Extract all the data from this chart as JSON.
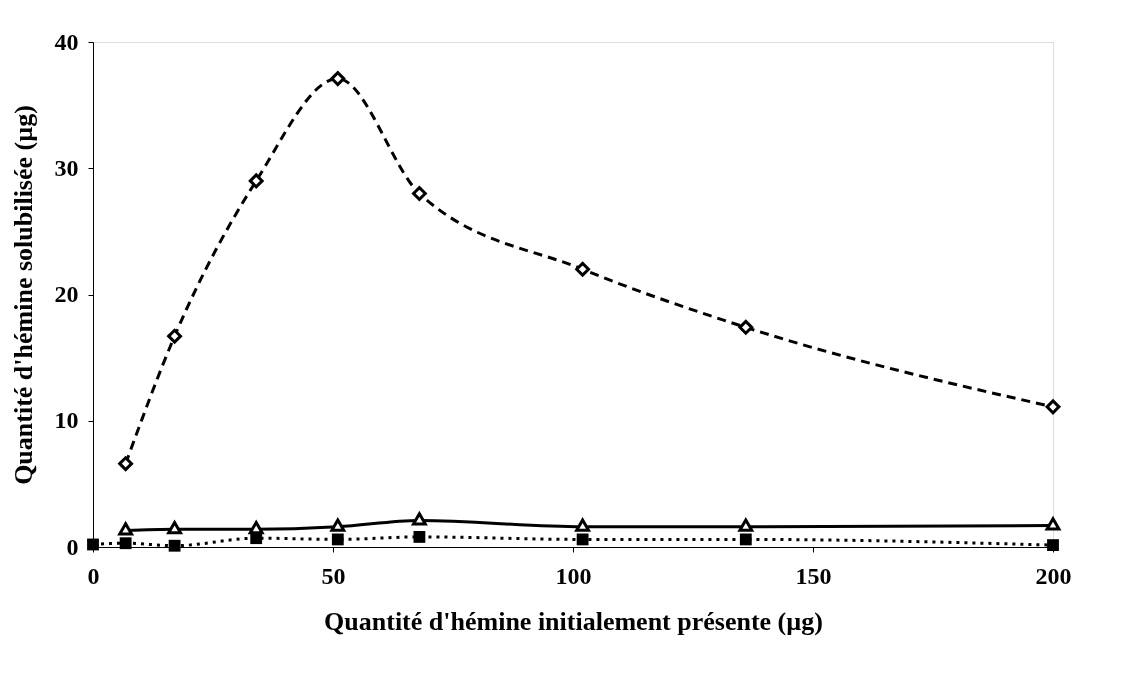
{
  "chart_data": {
    "type": "line",
    "xlabel": "Quantité d'hémine initialement présente (µg)",
    "ylabel": "Quantité d'hémine solubilisée (µg)",
    "x": [
      0,
      6.8,
      17,
      34,
      51,
      68,
      102,
      136,
      200
    ],
    "xlim": [
      0,
      200
    ],
    "xticks": [
      0,
      50,
      100,
      150,
      200
    ],
    "ylim": [
      0,
      40
    ],
    "yticks": [
      0,
      10,
      20,
      30,
      40
    ],
    "grid": false,
    "series": [
      {
        "color": "#000000",
        "marker": "diamond",
        "line_style": "dashed",
        "values": [
          null,
          6.6,
          16.7,
          29.0,
          37.1,
          28.0,
          22.0,
          17.4,
          11.1
        ]
      },
      {
        "color": "#000000",
        "marker": "triangle",
        "line_style": "solid",
        "values": [
          null,
          1.3,
          1.4,
          1.4,
          1.6,
          2.1,
          1.6,
          1.6,
          1.7
        ]
      },
      {
        "color": "#000000",
        "marker": "square",
        "line_style": "dotted",
        "values": [
          0.2,
          0.3,
          0.1,
          0.7,
          0.6,
          0.8,
          0.6,
          0.6,
          0.15
        ]
      }
    ]
  }
}
